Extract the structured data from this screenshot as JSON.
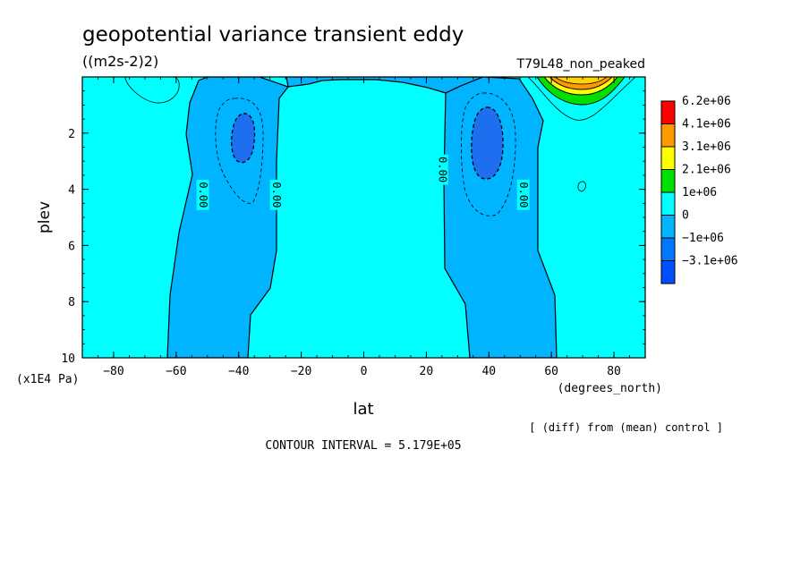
{
  "chart_data": {
    "type": "heatmap",
    "title": "geopotential variance transient eddy",
    "units": "((m2s-2)2)",
    "run_label": "T79L48_non_peaked",
    "xlabel": "lat",
    "xunits": "(degrees_north)",
    "ylabel": "plev",
    "yunits": "(x1E4 Pa)",
    "xlim": [
      -90,
      90
    ],
    "ylim": [
      0,
      10
    ],
    "y_inverted": true,
    "x_ticks": [
      -80,
      -60,
      -40,
      -20,
      0,
      20,
      40,
      60,
      80
    ],
    "y_ticks": [
      2,
      4,
      6,
      8,
      10
    ],
    "contour_interval_text": "CONTOUR INTERVAL = 5.179E+05",
    "diff_note": "[ (diff) from (mean) control ]",
    "contour_labels": [
      "0.00",
      "0.00",
      "0.00",
      "0.00"
    ],
    "legend": [
      {
        "label": "6.2e+06",
        "color": "#ff0000"
      },
      {
        "label": "4.1e+06",
        "color": "#ff9900"
      },
      {
        "label": "3.1e+06",
        "color": "#ffff00"
      },
      {
        "label": "2.1e+06",
        "color": "#00e000"
      },
      {
        "label": "1e+06",
        "color": "#00ffff"
      },
      {
        "label": "0",
        "color": "#00b4ff"
      },
      {
        "label": "-1e+06",
        "color": "#0078ff"
      },
      {
        "label": "-3.1e+06",
        "color": "#0050ff"
      }
    ],
    "colors": {
      "background_field": "#00ffff",
      "negative": "#00b4ff",
      "minimum": "#1e6ef0"
    }
  }
}
